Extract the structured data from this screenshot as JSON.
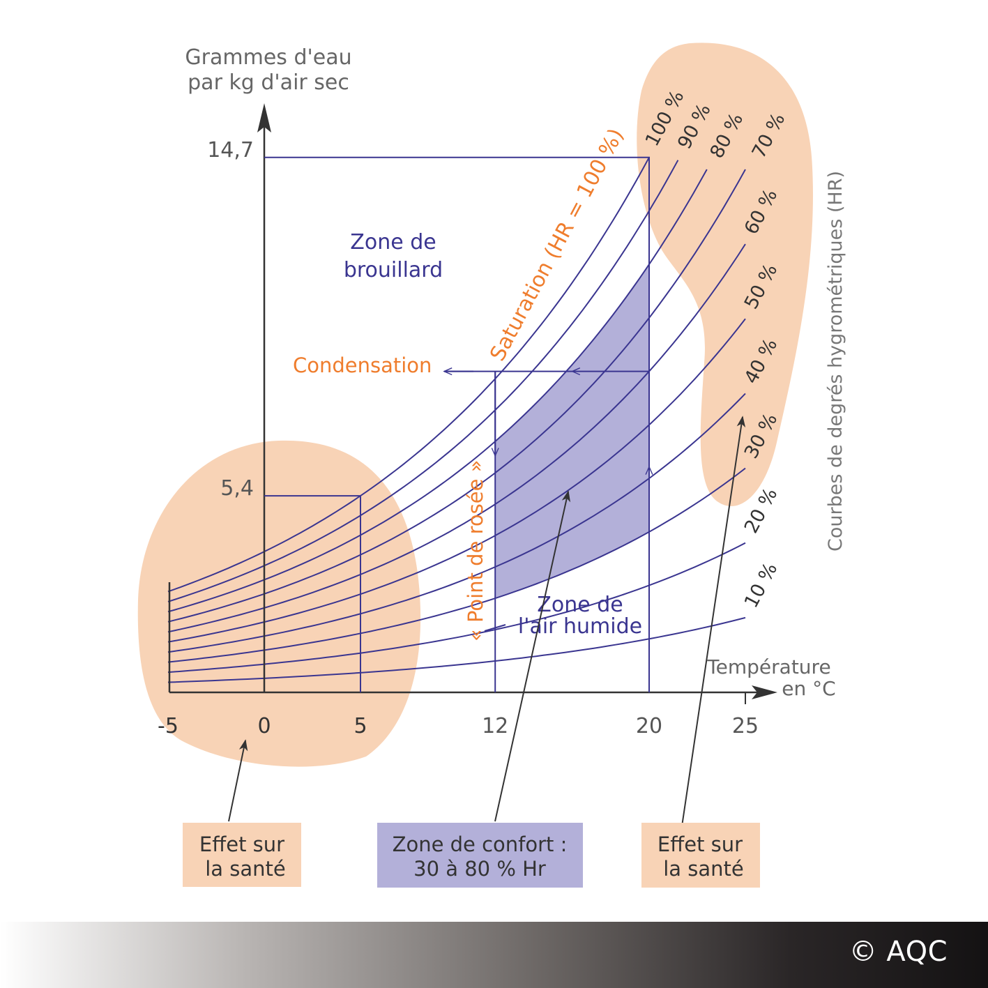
{
  "chart_data": {
    "type": "line",
    "ylabel_lines": [
      "Grammes d'eau",
      "par kg d'air sec"
    ],
    "xlabel_lines": [
      "Température",
      "en °C"
    ],
    "x_ticks": [
      "-5",
      "0",
      "5",
      "12",
      "20",
      "25"
    ],
    "y_ticks": [
      "5,4",
      "14,7"
    ],
    "xlim": [
      -5,
      27
    ],
    "ylim": [
      0,
      15
    ],
    "curve_x_range": [
      -5,
      25
    ],
    "series": [
      {
        "name": "100 %",
        "rh": 100
      },
      {
        "name": "90 %",
        "rh": 90
      },
      {
        "name": "80 %",
        "rh": 80
      },
      {
        "name": "70 %",
        "rh": 70
      },
      {
        "name": "60 %",
        "rh": 60
      },
      {
        "name": "50 %",
        "rh": 50
      },
      {
        "name": "40 %",
        "rh": 40
      },
      {
        "name": "30 %",
        "rh": 30
      },
      {
        "name": "20 %",
        "rh": 20
      },
      {
        "name": "10 %",
        "rh": 10
      }
    ],
    "reference_points": [
      {
        "x": 5,
        "y": 5.4
      },
      {
        "x": 20,
        "y": 14.7
      }
    ],
    "dew_point_path": {
      "start_x": 20,
      "start_rh": 60,
      "dew_x": 12
    },
    "comfort_zone": {
      "x_range": [
        12,
        20
      ],
      "rh_range": [
        30,
        80
      ]
    },
    "annotations": {
      "saturation": "Saturation (HR = 100 %)",
      "condensation": "Condensation",
      "dew_point": "« Point de rosée »",
      "fog_zone": [
        "Zone de",
        "brouillard"
      ],
      "humid_zone": [
        "Zone de",
        "l'air humide"
      ],
      "rh_curves_title": "Courbes de degrés hygrométriques (HR)"
    },
    "legend_boxes": [
      {
        "lines": [
          "Effet sur",
          "la santé"
        ],
        "kind": "health"
      },
      {
        "lines": [
          "Zone de confort :",
          "30 à 80 % Hr"
        ],
        "kind": "comfort"
      },
      {
        "lines": [
          "Effet sur",
          "la santé"
        ],
        "kind": "health"
      }
    ],
    "colors": {
      "curve": "#3a3590",
      "axis": "#333333",
      "accent": "#ef7d2d",
      "health_zone": "#f8d3b6",
      "comfort_zone": "#b3b0d9",
      "tick_text": "#555555"
    }
  },
  "footer": {
    "copyright": "© AQC"
  }
}
